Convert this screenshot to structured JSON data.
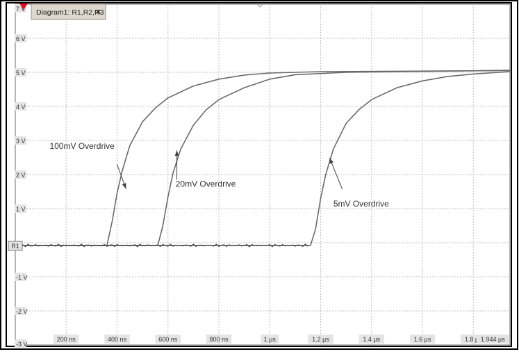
{
  "tab": {
    "label": "Diagram1: R1,R2,R3",
    "close": "×"
  },
  "ref_marker": "R1",
  "colors": {
    "background": "#ffffff",
    "outer_frame": "#000000",
    "grid": "#bdbdbd",
    "trace": "#6a6a6a",
    "text": "#333333",
    "tab_bg": "#ded7cf",
    "tab_border": "#9a8f84",
    "marker_red": "#e0141e",
    "tick_label_bg": "#e4e4e4"
  },
  "chart_data": {
    "type": "line",
    "xlim": [
      0,
      1.944
    ],
    "x_unit": "µs",
    "ylim": [
      -3,
      7
    ],
    "y_unit": "V",
    "grid": true,
    "x_tick_labels": [
      {
        "x": 0.2,
        "label": "200 ns"
      },
      {
        "x": 0.4,
        "label": "400 ns"
      },
      {
        "x": 0.6,
        "label": "600 ns"
      },
      {
        "x": 0.8,
        "label": "800 ns"
      },
      {
        "x": 1.0,
        "label": "1 µs"
      },
      {
        "x": 1.2,
        "label": "1.2 µs"
      },
      {
        "x": 1.4,
        "label": "1.4 µs"
      },
      {
        "x": 1.6,
        "label": "1.6 µs"
      },
      {
        "x": 1.8,
        "label": "1.8 µs"
      },
      {
        "x": 1.944,
        "label": "1.944 µs"
      }
    ],
    "y_tick_labels": [
      {
        "y": 7,
        "label": "7 V"
      },
      {
        "y": 6,
        "label": "6 V"
      },
      {
        "y": 5,
        "label": "5 V"
      },
      {
        "y": 4,
        "label": "4 V"
      },
      {
        "y": 3,
        "label": "3 V"
      },
      {
        "y": 2,
        "label": "2 V"
      },
      {
        "y": 1,
        "label": "1 V"
      },
      {
        "y": -1,
        "label": "-1 V"
      },
      {
        "y": -2,
        "label": "-2 V"
      },
      {
        "y": -3,
        "label": "-3 V"
      }
    ],
    "series": [
      {
        "name": "100mV Overdrive",
        "points": [
          [
            0,
            -0.08
          ],
          [
            0.36,
            -0.08
          ],
          [
            0.38,
            0.6
          ],
          [
            0.4,
            1.45
          ],
          [
            0.42,
            2.1
          ],
          [
            0.45,
            2.85
          ],
          [
            0.5,
            3.55
          ],
          [
            0.55,
            3.95
          ],
          [
            0.6,
            4.25
          ],
          [
            0.7,
            4.6
          ],
          [
            0.8,
            4.8
          ],
          [
            0.9,
            4.92
          ],
          [
            1.0,
            4.98
          ],
          [
            1.2,
            5.02
          ],
          [
            1.944,
            5.05
          ]
        ]
      },
      {
        "name": "20mV Overdrive",
        "points": [
          [
            0,
            -0.08
          ],
          [
            0.56,
            -0.08
          ],
          [
            0.58,
            0.5
          ],
          [
            0.6,
            1.35
          ],
          [
            0.62,
            2.05
          ],
          [
            0.65,
            2.75
          ],
          [
            0.7,
            3.45
          ],
          [
            0.75,
            3.9
          ],
          [
            0.8,
            4.2
          ],
          [
            0.9,
            4.55
          ],
          [
            1.0,
            4.8
          ],
          [
            1.1,
            4.93
          ],
          [
            1.3,
            5.0
          ],
          [
            1.944,
            5.06
          ]
        ]
      },
      {
        "name": "5mV Overdrive",
        "points": [
          [
            0,
            -0.08
          ],
          [
            1.16,
            -0.08
          ],
          [
            1.18,
            0.4
          ],
          [
            1.2,
            1.3
          ],
          [
            1.22,
            2.0
          ],
          [
            1.25,
            2.75
          ],
          [
            1.3,
            3.5
          ],
          [
            1.35,
            3.9
          ],
          [
            1.4,
            4.2
          ],
          [
            1.5,
            4.55
          ],
          [
            1.6,
            4.75
          ],
          [
            1.7,
            4.88
          ],
          [
            1.8,
            4.95
          ],
          [
            1.944,
            5.02
          ]
        ]
      }
    ],
    "annotations": [
      {
        "text": "100mV Overdrive",
        "label_at": [
          0.135,
          2.76
        ],
        "arrow_from": [
          0.4,
          2.3
        ],
        "arrow_to": [
          0.435,
          1.58
        ]
      },
      {
        "text": "20mV Overdrive",
        "label_at": [
          0.63,
          1.64
        ],
        "arrow_from": [
          0.635,
          1.85
        ],
        "arrow_to": [
          0.635,
          2.71
        ]
      },
      {
        "text": "5mV Overdrive",
        "label_at": [
          1.25,
          1.06
        ],
        "arrow_from": [
          1.285,
          1.57
        ],
        "arrow_to": [
          1.235,
          2.49
        ]
      }
    ]
  }
}
